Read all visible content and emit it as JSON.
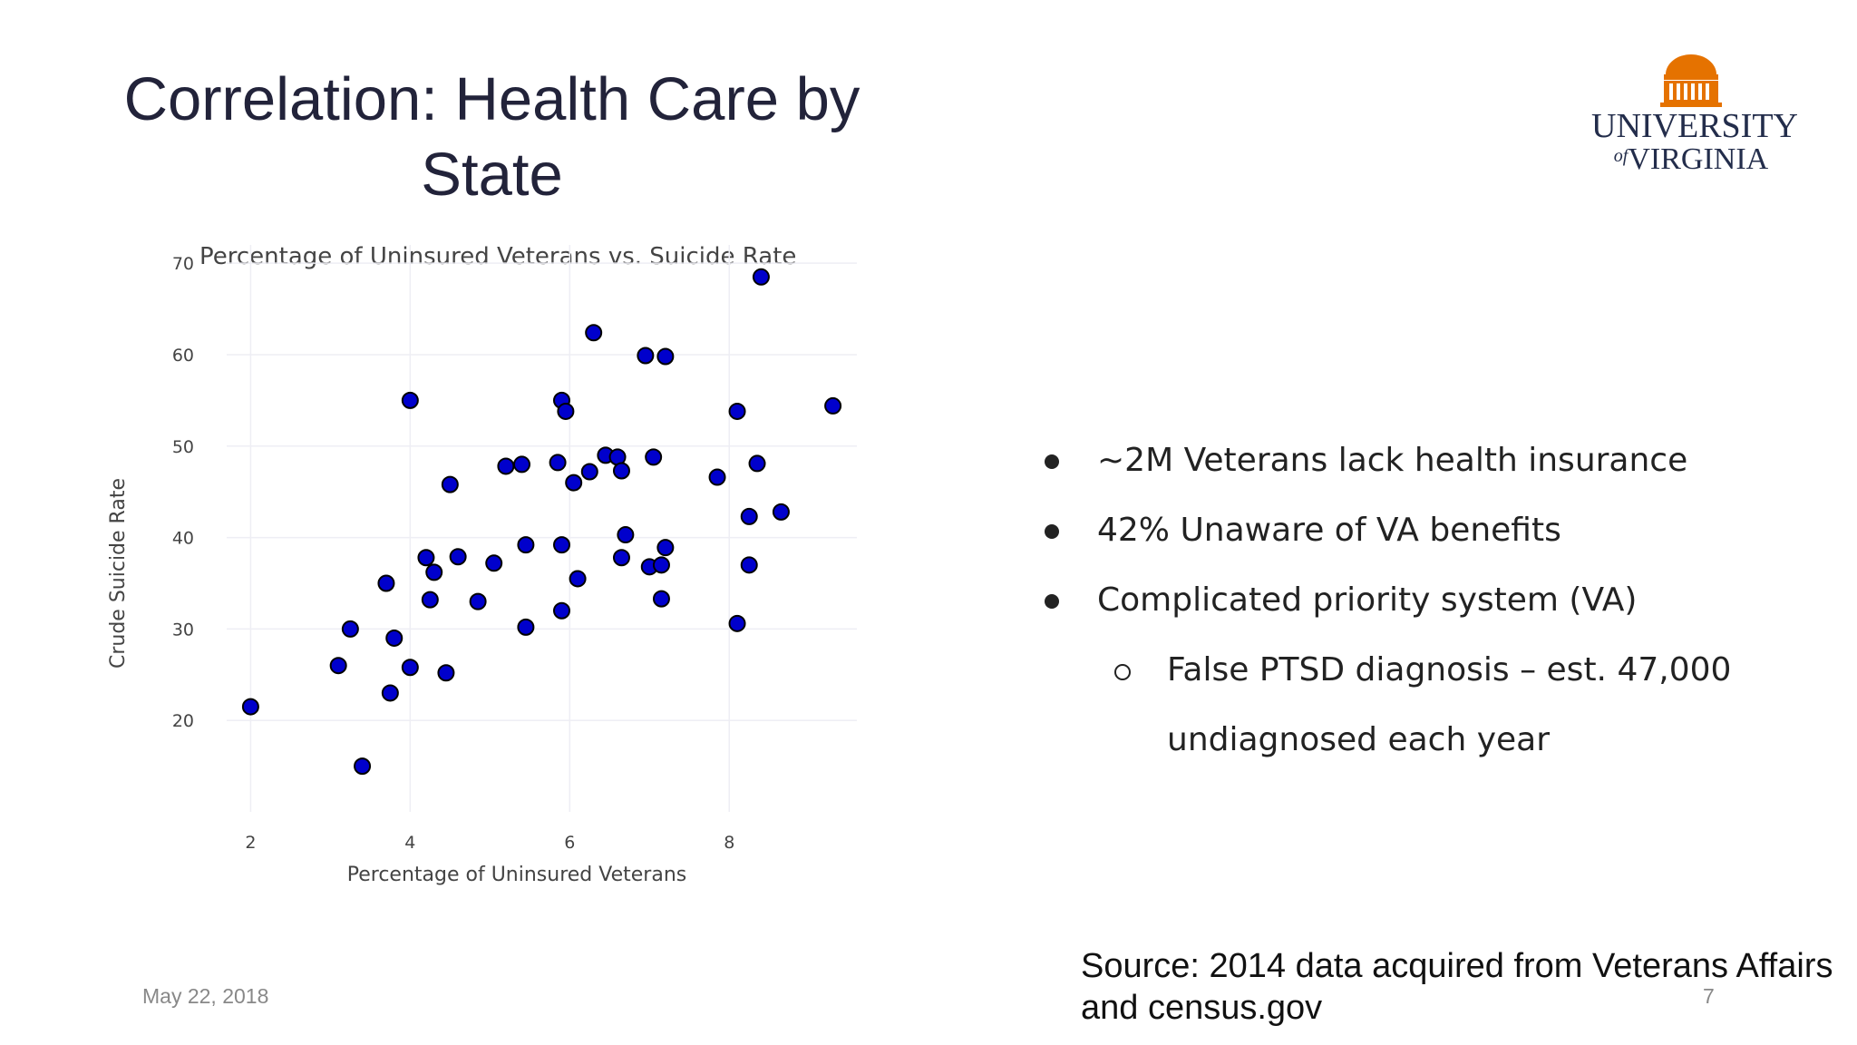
{
  "slide": {
    "title_line1": "Correlation: Health Care by",
    "title_line2": "State",
    "footer_date": "May 22, 2018",
    "page_number": "7",
    "source_line1": "Source: 2014 data acquired from Veterans Affairs",
    "source_line2": "and census.gov"
  },
  "logo": {
    "line1": "UNIVERSITY",
    "line2": "VIRGINIA",
    "of_text": "of",
    "colors": {
      "rotunda": "#E57200",
      "text": "#232D4B"
    }
  },
  "bullets": [
    {
      "level": 1,
      "text": "~2M Veterans lack health insurance"
    },
    {
      "level": 1,
      "text": "42% Unaware of VA benefits"
    },
    {
      "level": 1,
      "text": "Complicated priority system (VA)"
    },
    {
      "level": 2,
      "text": "False PTSD diagnosis – est. 47,000"
    },
    {
      "level": 3,
      "text": "undiagnosed each year"
    }
  ],
  "chart_data": {
    "type": "scatter",
    "title": "Percentage of Uninsured Veterans vs. Suicide Rate",
    "xlabel": "Percentage of Uninsured Veterans",
    "ylabel": "Crude Suicide Rate",
    "xlim": [
      1.7,
      9.6
    ],
    "ylim": [
      10,
      72
    ],
    "xticks": [
      2,
      4,
      6,
      8
    ],
    "yticks": [
      20,
      30,
      40,
      50,
      60,
      70
    ],
    "grid": true,
    "marker_color": "#0000CC",
    "marker_edge": "#000000",
    "series": [
      {
        "points": [
          [
            2.0,
            21.5
          ],
          [
            3.1,
            26.0
          ],
          [
            3.25,
            30.0
          ],
          [
            3.4,
            15.0
          ],
          [
            3.7,
            35.0
          ],
          [
            3.75,
            23.0
          ],
          [
            3.8,
            29.0
          ],
          [
            4.0,
            55.0
          ],
          [
            4.0,
            25.8
          ],
          [
            4.2,
            37.8
          ],
          [
            4.25,
            33.2
          ],
          [
            4.3,
            36.2
          ],
          [
            4.45,
            25.2
          ],
          [
            4.5,
            45.8
          ],
          [
            4.6,
            37.9
          ],
          [
            4.85,
            33.0
          ],
          [
            5.05,
            37.2
          ],
          [
            5.2,
            47.8
          ],
          [
            5.4,
            48.0
          ],
          [
            5.45,
            39.2
          ],
          [
            5.45,
            30.2
          ],
          [
            5.85,
            48.2
          ],
          [
            5.9,
            32.0
          ],
          [
            5.9,
            39.2
          ],
          [
            5.9,
            55.0
          ],
          [
            5.95,
            53.8
          ],
          [
            6.05,
            46.0
          ],
          [
            6.1,
            35.5
          ],
          [
            6.25,
            47.2
          ],
          [
            6.3,
            62.4
          ],
          [
            6.45,
            49.0
          ],
          [
            6.6,
            48.8
          ],
          [
            6.65,
            37.8
          ],
          [
            6.65,
            47.3
          ],
          [
            6.7,
            40.3
          ],
          [
            6.95,
            59.9
          ],
          [
            7.0,
            36.8
          ],
          [
            7.05,
            48.8
          ],
          [
            7.15,
            37.0
          ],
          [
            7.15,
            33.3
          ],
          [
            7.2,
            59.8
          ],
          [
            7.2,
            38.9
          ],
          [
            7.85,
            46.6
          ],
          [
            8.1,
            53.8
          ],
          [
            8.1,
            30.6
          ],
          [
            8.25,
            42.3
          ],
          [
            8.25,
            37.0
          ],
          [
            8.35,
            48.1
          ],
          [
            8.4,
            68.5
          ],
          [
            8.65,
            42.8
          ],
          [
            9.3,
            54.4
          ]
        ]
      }
    ]
  }
}
